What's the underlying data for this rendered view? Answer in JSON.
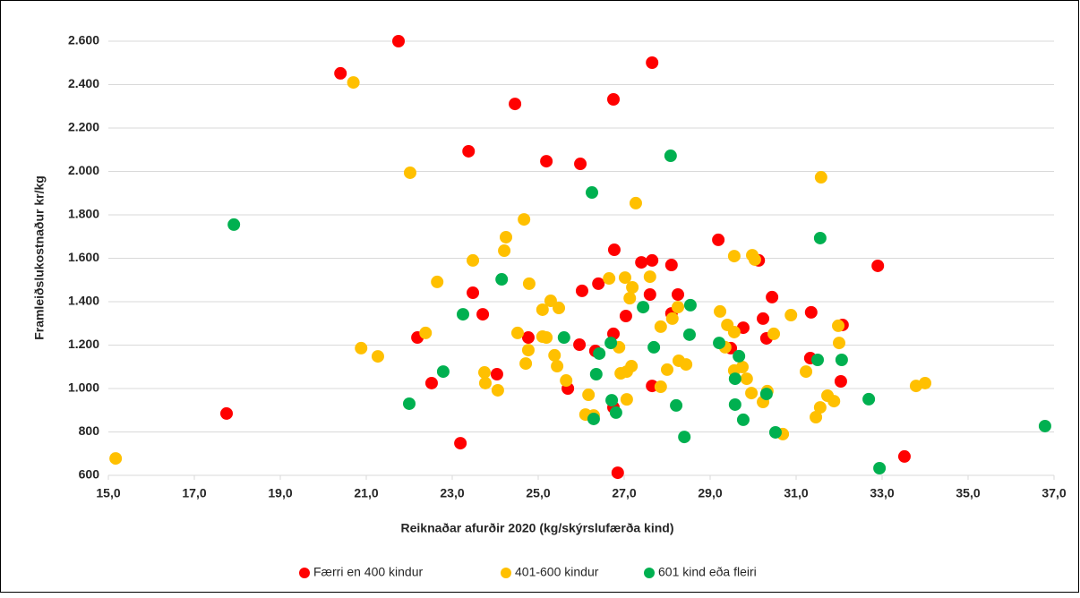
{
  "chart_data": {
    "type": "scatter",
    "xlabel": "Reiknaðar afurðir 2020 (kg/skýrslufærða kind)",
    "ylabel": "Framleiðslukostnaður kr/kg",
    "xlim": [
      15,
      37
    ],
    "xticks": [
      {
        "value": 15,
        "label": "15,0"
      },
      {
        "value": 17,
        "label": "17,0"
      },
      {
        "value": 19,
        "label": "19,0"
      },
      {
        "value": 21,
        "label": "21,0"
      },
      {
        "value": 23,
        "label": "23,0"
      },
      {
        "value": 25,
        "label": "25,0"
      },
      {
        "value": 27,
        "label": "27,0"
      },
      {
        "value": 29,
        "label": "29,0"
      },
      {
        "value": 31,
        "label": "31,0"
      },
      {
        "value": 33,
        "label": "33,0"
      },
      {
        "value": 35,
        "label": "35,0"
      },
      {
        "value": 37,
        "label": "37,0"
      }
    ],
    "ylim": [
      600,
      2600
    ],
    "yticks": [
      600,
      800,
      {
        "value": 1000,
        "label": "1.000"
      },
      {
        "value": 1200,
        "label": "1.200"
      },
      {
        "value": 1400,
        "label": "1.400"
      },
      {
        "value": 1600,
        "label": "1.600"
      },
      {
        "value": 1800,
        "label": "1.800"
      },
      {
        "value": 2000,
        "label": "2.000"
      },
      {
        "value": 2200,
        "label": "2.200"
      },
      {
        "value": 2400,
        "label": "2.400"
      },
      {
        "value": 2600,
        "label": "2.600"
      }
    ],
    "grid": true,
    "legend": "bottom",
    "series": [
      {
        "name": "Færri en 400 kindur",
        "color": "#ff0000",
        "x": [
          21.75,
          20.4,
          27.65,
          24.46,
          26.75,
          23.38,
          25.19,
          25.98,
          26.77,
          29.19,
          27.4,
          27.65,
          28.1,
          30.13,
          32.9,
          23.48,
          26.02,
          26.4,
          27.6,
          28.25,
          30.44,
          23.71,
          27.04,
          26.75,
          29.77,
          30.23,
          31.35,
          32.08,
          30.31,
          28.1,
          22.19,
          24.77,
          25.96,
          26.33,
          29.48,
          31.33,
          24.04,
          22.52,
          25.69,
          27.65,
          32.04,
          26.75,
          17.75,
          23.19,
          26.85,
          33.52
        ],
        "values": [
          2600,
          2452,
          2501,
          2311,
          2332,
          2093,
          2047,
          2035,
          1639,
          1685,
          1581,
          1590,
          1569,
          1590,
          1565,
          1441,
          1450,
          1483,
          1433,
          1433,
          1421,
          1342,
          1334,
          1252,
          1280,
          1322,
          1351,
          1293,
          1231,
          1346,
          1235,
          1235,
          1202,
          1173,
          1186,
          1140,
          1066,
          1025,
          1000,
          1012,
          1033,
          913,
          885,
          748,
          612,
          687
        ]
      },
      {
        "name": "401-600 kindur",
        "color": "#ffc000",
        "x": [
          20.7,
          22.02,
          24.67,
          27.27,
          31.58,
          24.25,
          24.21,
          23.48,
          27.02,
          27.6,
          29.56,
          29.98,
          30.04,
          22.65,
          24.79,
          26.65,
          27.19,
          27.13,
          25.29,
          25.1,
          25.48,
          28.25,
          28.12,
          29.23,
          30.88,
          27.85,
          29.56,
          29.4,
          30.48,
          31.98,
          32.0,
          22.38,
          24.52,
          25.1,
          25.19,
          24.77,
          26.88,
          29.35,
          25.38,
          28.27,
          28.44,
          24.71,
          25.44,
          27.17,
          27.06,
          26.92,
          28.0,
          29.56,
          29.75,
          31.23,
          20.88,
          21.27,
          23.75,
          23.77,
          24.06,
          25.65,
          26.17,
          27.06,
          27.85,
          29.96,
          29.85,
          30.33,
          30.23,
          31.73,
          31.88,
          31.56,
          31.46,
          26.1,
          26.29,
          30.69,
          33.79,
          34.0,
          15.17
        ],
        "values": [
          2410,
          1994,
          1779,
          1854,
          1973,
          1697,
          1635,
          1590,
          1511,
          1515,
          1610,
          1614,
          1594,
          1491,
          1483,
          1507,
          1466,
          1416,
          1404,
          1363,
          1371,
          1375,
          1322,
          1355,
          1338,
          1285,
          1260,
          1293,
          1252,
          1289,
          1210,
          1256,
          1256,
          1239,
          1235,
          1177,
          1190,
          1190,
          1153,
          1128,
          1111,
          1115,
          1103,
          1103,
          1078,
          1070,
          1087,
          1083,
          1099,
          1078,
          1186,
          1148,
          1074,
          1025,
          992,
          1037,
          971,
          950,
          1008,
          979,
          1045,
          988,
          938,
          967,
          942,
          913,
          868,
          880,
          876,
          790,
          1012,
          1025,
          678
        ]
      },
      {
        "name": "601 kind eða fleiri",
        "color": "#00b050",
        "x": [
          17.92,
          28.08,
          26.25,
          24.15,
          31.56,
          27.44,
          28.54,
          23.25,
          25.6,
          26.69,
          27.69,
          28.52,
          29.21,
          26.42,
          29.67,
          31.5,
          32.06,
          22.79,
          26.35,
          29.58,
          30.31,
          32.69,
          22.0,
          28.21,
          29.58,
          26.71,
          26.81,
          26.29,
          29.77,
          30.52,
          28.4,
          32.94,
          36.79
        ],
        "values": [
          1755,
          2072,
          1903,
          1503,
          1693,
          1375,
          1384,
          1342,
          1235,
          1210,
          1190,
          1248,
          1210,
          1161,
          1149,
          1132,
          1132,
          1078,
          1066,
          1045,
          975,
          951,
          930,
          922,
          926,
          946,
          889,
          860,
          856,
          798,
          777,
          633,
          827
        ]
      }
    ]
  }
}
